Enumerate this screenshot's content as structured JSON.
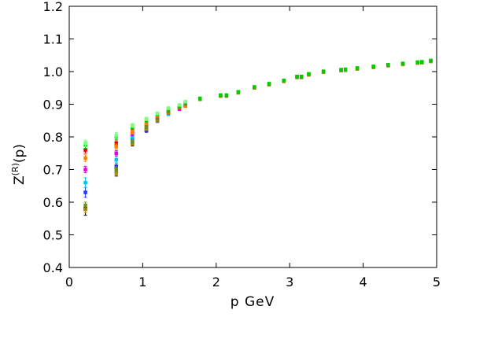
{
  "chart_data": {
    "type": "scatter",
    "title": "",
    "xlabel": "p  GeV",
    "ylabel": "Z^(R)(p)",
    "ylabel_parts": {
      "base": "Z",
      "sup": "(R)",
      "tail": "(p)"
    },
    "xlim": [
      0,
      5
    ],
    "ylim": [
      0.4,
      1.2
    ],
    "xticks": [
      0,
      1,
      2,
      3,
      4,
      5
    ],
    "yticks": [
      0.4,
      0.5,
      0.6,
      0.7,
      0.8,
      0.9,
      1.0,
      1.1,
      1.2
    ],
    "xtick_labels": [
      "0",
      "1",
      "2",
      "3",
      "4",
      "5"
    ],
    "ytick_labels": [
      "0.4",
      "0.5",
      "0.6",
      "0.7",
      "0.8",
      "0.9",
      "1.0",
      "1.1",
      "1.2"
    ],
    "grid": false,
    "legend": "none",
    "series_colors": [
      "#000000",
      "#1e3cff",
      "#00c8e6",
      "#e600e6",
      "#e60000",
      "#ff7f00",
      "#b8860b",
      "#6b8e23",
      "#00cc00",
      "#7dff7d"
    ],
    "series": [
      {
        "x": [
          0.22,
          0.64,
          0.86,
          1.05
        ],
        "y": [
          0.58,
          0.69,
          0.78,
          0.82
        ],
        "yerr": [
          0.02,
          0.01,
          0.008,
          0.006
        ]
      },
      {
        "x": [
          0.22,
          0.64,
          0.86,
          1.05,
          1.2
        ],
        "y": [
          0.63,
          0.71,
          0.79,
          0.82,
          0.85
        ],
        "yerr": [
          0.015,
          0.01,
          0.008,
          0.006,
          0.006
        ]
      },
      {
        "x": [
          0.22,
          0.64,
          0.86,
          1.05,
          1.2,
          1.35
        ],
        "y": [
          0.66,
          0.73,
          0.8,
          0.83,
          0.855,
          0.87
        ],
        "yerr": [
          0.015,
          0.01,
          0.008,
          0.006,
          0.005,
          0.005
        ]
      },
      {
        "x": [
          0.22,
          0.64,
          0.86,
          1.05,
          1.2,
          1.35,
          1.5
        ],
        "y": [
          0.7,
          0.75,
          0.81,
          0.835,
          0.86,
          0.875,
          0.885
        ],
        "yerr": [
          0.01,
          0.008,
          0.007,
          0.006,
          0.005,
          0.005,
          0.004
        ]
      },
      {
        "x": [
          0.22,
          0.64,
          0.86,
          1.05,
          1.2,
          1.35,
          1.5,
          1.58
        ],
        "y": [
          0.76,
          0.78,
          0.82,
          0.84,
          0.86,
          0.875,
          0.89,
          0.895
        ],
        "yerr": [
          0.01,
          0.008,
          0.006,
          0.005,
          0.005,
          0.004,
          0.004,
          0.004
        ]
      },
      {
        "x": [
          0.22,
          0.64,
          0.86,
          1.05,
          1.2,
          1.35,
          1.5,
          1.58
        ],
        "y": [
          0.735,
          0.77,
          0.815,
          0.84,
          0.865,
          0.88,
          0.89,
          0.895
        ],
        "yerr": [
          0.01,
          0.008,
          0.006,
          0.005,
          0.005,
          0.004,
          0.004,
          0.004
        ]
      },
      {
        "x": [
          0.22,
          0.64,
          0.86,
          1.05,
          1.2,
          1.35,
          1.5,
          1.58,
          1.78,
          2.06,
          2.14,
          2.3,
          2.52,
          2.72,
          2.92,
          3.1,
          3.16,
          3.26,
          3.46,
          3.7,
          3.76,
          3.92,
          4.14,
          4.34,
          4.54,
          4.74,
          4.8,
          4.92
        ],
        "y": [
          0.578,
          0.69,
          0.78,
          0.825,
          0.85,
          0.875,
          0.89,
          0.9,
          0.915,
          0.925,
          0.925,
          0.935,
          0.95,
          0.96,
          0.97,
          0.982,
          0.982,
          0.99,
          0.998,
          1.003,
          1.004,
          1.008,
          1.013,
          1.018,
          1.022,
          1.026,
          1.027,
          1.031
        ],
        "yerr": [
          0.01,
          0.008,
          0.006,
          0.005,
          0.004,
          0.004,
          0.003,
          0.003,
          0.003,
          0.003,
          0.003,
          0.003,
          0.003,
          0.003,
          0.003,
          0.003,
          0.003,
          0.003,
          0.003,
          0.003,
          0.003,
          0.003,
          0.003,
          0.003,
          0.003,
          0.003,
          0.003,
          0.003
        ]
      },
      {
        "x": [
          0.22,
          0.64,
          0.86,
          1.05,
          1.2,
          1.35,
          1.5,
          1.58,
          1.78,
          2.06,
          2.14,
          2.3,
          2.52,
          2.72,
          2.92,
          3.1,
          3.16,
          3.26,
          3.46,
          3.7,
          3.76,
          3.92,
          4.14,
          4.34,
          4.54,
          4.74,
          4.8,
          4.92
        ],
        "y": [
          0.59,
          0.7,
          0.785,
          0.83,
          0.855,
          0.878,
          0.892,
          0.902,
          0.917,
          0.927,
          0.927,
          0.937,
          0.952,
          0.962,
          0.972,
          0.984,
          0.984,
          0.992,
          1.0,
          1.005,
          1.006,
          1.01,
          1.015,
          1.02,
          1.024,
          1.028,
          1.029,
          1.033
        ],
        "yerr": [
          0.01,
          0.008,
          0.006,
          0.005,
          0.004,
          0.004,
          0.003,
          0.003,
          0.003,
          0.003,
          0.003,
          0.003,
          0.003,
          0.003,
          0.003,
          0.003,
          0.003,
          0.003,
          0.003,
          0.003,
          0.003,
          0.003,
          0.003,
          0.003,
          0.003,
          0.003,
          0.003,
          0.003
        ]
      },
      {
        "x": [
          0.22,
          0.64,
          0.86,
          1.05,
          1.2,
          1.35,
          1.5,
          1.58,
          1.78,
          2.06,
          2.14,
          2.3,
          2.52,
          2.72,
          2.92,
          3.1,
          3.16,
          3.26,
          3.46,
          3.7,
          3.76,
          3.92,
          4.14,
          4.34,
          4.54,
          4.74,
          4.8,
          4.92
        ],
        "y": [
          0.775,
          0.8,
          0.83,
          0.85,
          0.87,
          0.885,
          0.895,
          0.905,
          0.918,
          0.928,
          0.928,
          0.938,
          0.953,
          0.963,
          0.973,
          0.985,
          0.985,
          0.993,
          1.001,
          1.006,
          1.007,
          1.011,
          1.016,
          1.021,
          1.025,
          1.029,
          1.03,
          1.034
        ],
        "yerr": [
          0.01,
          0.008,
          0.006,
          0.005,
          0.004,
          0.004,
          0.003,
          0.003,
          0.003,
          0.003,
          0.003,
          0.003,
          0.003,
          0.003,
          0.003,
          0.003,
          0.003,
          0.003,
          0.003,
          0.003,
          0.003,
          0.003,
          0.003,
          0.003,
          0.003,
          0.003,
          0.003,
          0.003
        ]
      },
      {
        "x": [
          0.22,
          0.64,
          0.86,
          1.05,
          1.2,
          1.35,
          1.5,
          1.58
        ],
        "y": [
          0.78,
          0.805,
          0.835,
          0.855,
          0.872,
          0.888,
          0.898,
          0.908
        ],
        "yerr": [
          0.01,
          0.008,
          0.006,
          0.005,
          0.004,
          0.004,
          0.003,
          0.003
        ]
      }
    ]
  }
}
